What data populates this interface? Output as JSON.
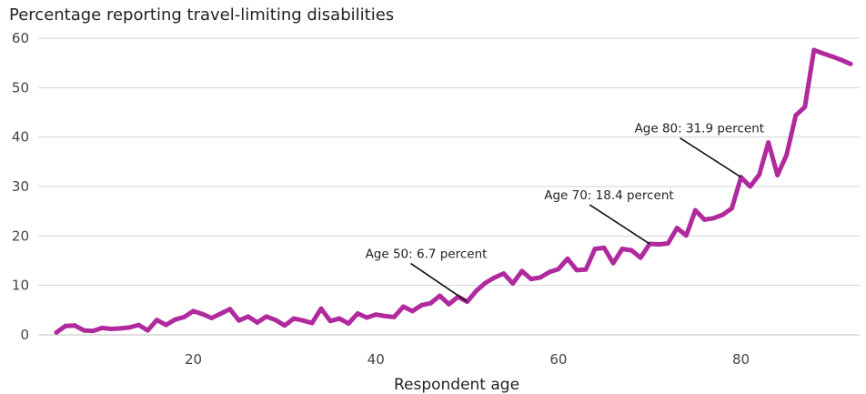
{
  "chart_data": {
    "type": "line",
    "title": "Percentage reporting travel-limiting disabilities",
    "xlabel": "Respondent age",
    "ylabel": "",
    "xlim": [
      3,
      93
    ],
    "ylim": [
      0,
      60
    ],
    "xticks": [
      20,
      40,
      60,
      80
    ],
    "yticks": [
      0,
      10,
      20,
      30,
      40,
      50,
      60
    ],
    "grid": "horizontal",
    "legend": "none",
    "line_color": "#b02a9e",
    "series": [
      {
        "x": [
          5,
          6,
          7,
          8,
          9,
          10,
          11,
          12,
          13,
          14,
          15,
          16,
          17,
          18,
          19,
          20,
          21,
          22,
          23,
          24,
          25,
          26,
          27,
          28,
          29,
          30,
          31,
          32,
          33,
          34,
          35,
          36,
          37,
          38,
          39,
          40,
          41,
          42,
          43,
          44,
          45,
          46,
          47,
          48,
          49,
          50,
          51,
          52,
          53,
          54,
          55,
          56,
          57,
          58,
          59,
          60,
          61,
          62,
          63,
          64,
          65,
          66,
          67,
          68,
          69,
          70,
          71,
          72,
          73,
          74,
          75,
          76,
          77,
          78,
          79,
          80,
          81,
          82,
          83,
          84,
          85,
          86,
          87,
          88,
          89,
          90,
          91,
          92
        ],
        "values": [
          0.5,
          1.8,
          1.9,
          0.9,
          0.8,
          1.4,
          1.2,
          1.3,
          1.5,
          2.0,
          0.9,
          3.0,
          2.0,
          3.1,
          3.6,
          4.8,
          4.2,
          3.4,
          4.3,
          5.2,
          2.9,
          3.7,
          2.5,
          3.7,
          3.0,
          1.9,
          3.3,
          2.9,
          2.4,
          5.3,
          2.8,
          3.3,
          2.3,
          4.3,
          3.5,
          4.1,
          3.8,
          3.6,
          5.7,
          4.8,
          6.0,
          6.4,
          7.9,
          6.2,
          7.7,
          6.7,
          8.9,
          10.5,
          11.6,
          12.4,
          10.4,
          12.9,
          11.3,
          11.6,
          12.7,
          13.3,
          15.4,
          13.1,
          13.2,
          17.4,
          17.6,
          14.5,
          17.4,
          17.1,
          15.6,
          18.4,
          18.3,
          18.5,
          21.6,
          20.1,
          25.2,
          23.3,
          23.6,
          24.3,
          25.6,
          31.9,
          30.0,
          32.4,
          38.9,
          32.3,
          36.4,
          44.4,
          46.1,
          57.6,
          56.9,
          56.3,
          55.6,
          54.8
        ]
      }
    ],
    "annotations": [
      {
        "text": "Age 50: 6.7 percent",
        "x": 50,
        "y": 6.7
      },
      {
        "text": "Age 70: 18.4 percent",
        "x": 70,
        "y": 18.4
      },
      {
        "text": "Age 80: 31.9 percent",
        "x": 80,
        "y": 31.9
      }
    ]
  }
}
